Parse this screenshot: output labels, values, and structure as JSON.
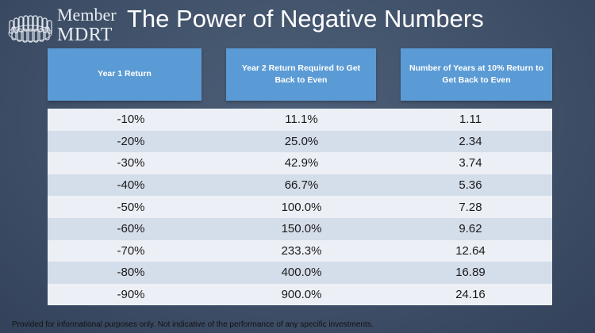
{
  "logo": {
    "member": "Member",
    "mdrt": "MDRT"
  },
  "title": "The Power of Negative Numbers",
  "headers": [
    "Year 1 Return",
    "Year 2 Return Required to Get Back to Even",
    "Number of Years at 10% Return to Get Back to Even"
  ],
  "rows": [
    [
      "-10%",
      "11.1%",
      "1.11"
    ],
    [
      "-20%",
      "25.0%",
      "2.34"
    ],
    [
      "-30%",
      "42.9%",
      "3.74"
    ],
    [
      "-40%",
      "66.7%",
      "5.36"
    ],
    [
      "-50%",
      "100.0%",
      "7.28"
    ],
    [
      "-60%",
      "150.0%",
      "9.62"
    ],
    [
      "-70%",
      "233.3%",
      "12.64"
    ],
    [
      "-80%",
      "400.0%",
      "16.89"
    ],
    [
      "-90%",
      "900.0%",
      "24.16"
    ]
  ],
  "footer": "Provided for informational purposes only.  Not indicative of the performance of any specific investments.",
  "colors": {
    "header": "#5b9bd5",
    "row_light": "#ecf0f6",
    "row_dark": "#d4ddea",
    "background": "#3f5068"
  }
}
